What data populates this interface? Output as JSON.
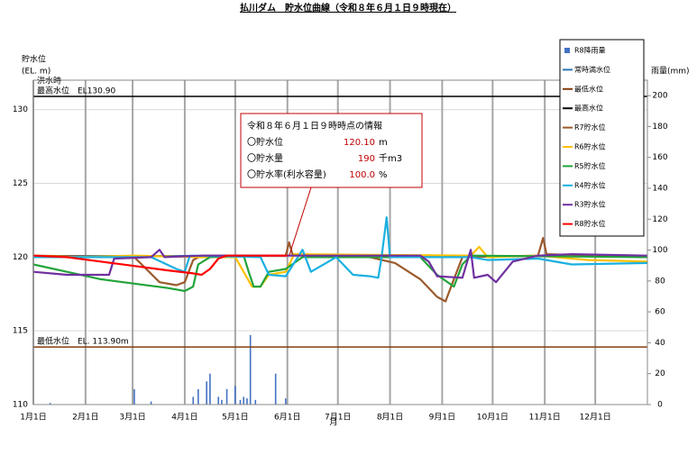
{
  "chart_data": {
    "type": "line",
    "title": "払川ダム　貯水位曲線（令和８年６月１日９時現在）",
    "y_label": [
      "貯水位",
      "(EL. m)"
    ],
    "y2_label": "雨量(mm)",
    "x_label": "月",
    "xlim": [
      0,
      365
    ],
    "xticks": [
      {
        "value": 0,
        "label": "1月1日"
      },
      {
        "value": 31,
        "label": "2月1日"
      },
      {
        "value": 59,
        "label": "3月1日"
      },
      {
        "value": 90,
        "label": "4月1日"
      },
      {
        "value": 120,
        "label": "5月1日"
      },
      {
        "value": 151,
        "label": "6月1日"
      },
      {
        "value": 181,
        "label": "7月1日"
      },
      {
        "value": 212,
        "label": "8月1日"
      },
      {
        "value": 243,
        "label": "9月1日"
      },
      {
        "value": 273,
        "label": "10月1日"
      },
      {
        "value": 304,
        "label": "11月1日"
      },
      {
        "value": 334,
        "label": "12月1日"
      }
    ],
    "ylim": [
      110,
      132
    ],
    "yticks": [
      110,
      115,
      120,
      125,
      130
    ],
    "y2lim": [
      0,
      210
    ],
    "y2ticks": [
      0,
      20,
      40,
      60,
      80,
      100,
      120,
      140,
      160,
      180,
      200
    ],
    "grid": true,
    "legend": "top-right",
    "series": [
      {
        "name": "R8降雨量",
        "type": "bar",
        "axis": "y2",
        "color": "#4472c4",
        "x": [
          10,
          60,
          70,
          95,
          98,
          103,
          105,
          110,
          112,
          115,
          120,
          123,
          125,
          127,
          129,
          132,
          144,
          150
        ],
        "values": [
          1,
          10,
          2,
          5,
          10,
          15,
          20,
          5,
          3,
          10,
          12,
          3,
          5,
          4,
          45,
          3,
          20,
          4
        ]
      },
      {
        "name": "常時満水位",
        "type": "hline",
        "color": "#2e75b6",
        "values": [
          120.1
        ]
      },
      {
        "name": "最低水位",
        "type": "hline",
        "color": "#843c0c",
        "values": [
          113.9
        ],
        "label": [
          "最低水位　EL. 113.90m"
        ]
      },
      {
        "name": "最高水位",
        "type": "hline",
        "color": "#000000",
        "values": [
          130.9
        ],
        "label": [
          "洪水時",
          "最高水位　EL130.90"
        ]
      },
      {
        "name": "R7貯水位",
        "type": "line",
        "color": "#9c5a2c",
        "x": [
          0,
          60,
          75,
          85,
          90,
          95,
          100,
          150,
          152,
          154,
          200,
          215,
          230,
          240,
          245,
          250,
          255,
          300,
          303,
          305,
          365
        ],
        "values": [
          120.1,
          120.0,
          118.3,
          118.1,
          118.3,
          119.8,
          120.1,
          120.1,
          121.0,
          120.2,
          120.0,
          119.6,
          118.5,
          117.3,
          117.0,
          118.5,
          120.0,
          120.1,
          121.3,
          120.2,
          120.0
        ]
      },
      {
        "name": "R6貯水位",
        "type": "line",
        "color": "#ffc000",
        "x": [
          0,
          25,
          60,
          100,
          120,
          125,
          130,
          135,
          140,
          150,
          155,
          260,
          265,
          270,
          300,
          330,
          365
        ],
        "values": [
          120.1,
          120.0,
          120.1,
          120.0,
          120.0,
          119.0,
          118.0,
          118.0,
          118.8,
          119.0,
          120.2,
          120.1,
          120.7,
          120.0,
          120.1,
          119.8,
          119.7
        ]
      },
      {
        "name": "R5貯水位",
        "type": "line",
        "color": "#22a33a",
        "x": [
          0,
          20,
          40,
          60,
          80,
          90,
          95,
          98,
          105,
          125,
          128,
          131,
          135,
          140,
          150,
          160,
          230,
          240,
          250,
          255,
          260,
          365
        ],
        "values": [
          119.5,
          119.0,
          118.5,
          118.2,
          117.9,
          117.7,
          118.0,
          119.5,
          120.0,
          120.1,
          119.0,
          118.0,
          118.0,
          119.0,
          119.2,
          120.0,
          120.0,
          118.8,
          118.0,
          119.5,
          120.1,
          120.0
        ]
      },
      {
        "name": "R4貯水位",
        "type": "line",
        "color": "#1ab0e0",
        "x": [
          0,
          70,
          85,
          90,
          93,
          135,
          140,
          150,
          160,
          165,
          180,
          190,
          200,
          205,
          207,
          210,
          212,
          260,
          270,
          300,
          320,
          365
        ],
        "values": [
          120.0,
          120.0,
          119.2,
          119.0,
          120.1,
          120.0,
          118.8,
          118.7,
          120.5,
          119.0,
          120.0,
          118.8,
          118.7,
          118.6,
          120.0,
          122.7,
          120.0,
          120.0,
          119.8,
          119.9,
          119.5,
          119.6
        ]
      },
      {
        "name": "R3貯水位",
        "type": "line",
        "color": "#7030a0",
        "x": [
          0,
          20,
          45,
          48,
          70,
          75,
          78,
          100,
          160,
          230,
          235,
          240,
          255,
          260,
          262,
          270,
          275,
          285,
          300,
          320,
          365
        ],
        "values": [
          119.0,
          118.8,
          118.8,
          119.9,
          120.0,
          120.5,
          120.0,
          120.1,
          120.1,
          120.1,
          119.7,
          118.7,
          118.6,
          120.5,
          118.6,
          118.8,
          118.3,
          119.7,
          120.1,
          120.2,
          120.1
        ]
      },
      {
        "name": "R8貯水位",
        "type": "line",
        "color": "#ff0000",
        "x": [
          0,
          20,
          40,
          60,
          80,
          95,
          100,
          105,
          110,
          115,
          151
        ],
        "values": [
          120.1,
          120.0,
          119.7,
          119.4,
          119.1,
          118.9,
          118.8,
          119.2,
          119.9,
          120.1,
          120.1
        ]
      }
    ],
    "annotation": {
      "title": "令和８年６月１日９時時点の情報",
      "rows": [
        {
          "label": "〇貯水位",
          "value": "120.10",
          "unit": "m"
        },
        {
          "label": "〇貯水量",
          "value": "190",
          "unit": "千m3"
        },
        {
          "label": "〇貯水率(利水容量)",
          "value": "100.0",
          "unit": "%"
        }
      ]
    }
  }
}
